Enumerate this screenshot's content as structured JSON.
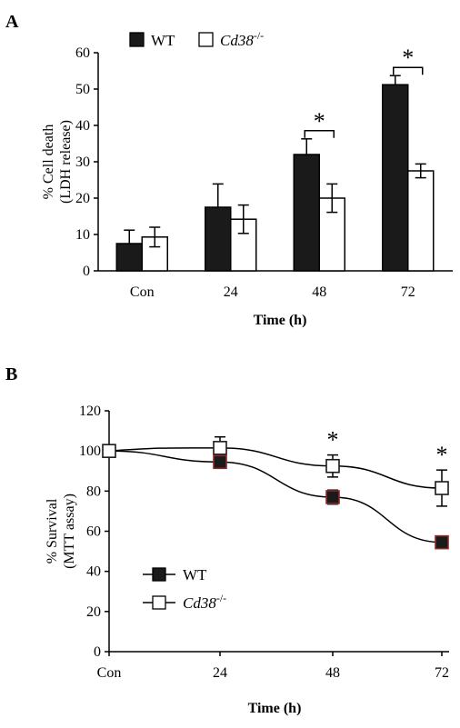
{
  "chart_data": [
    {
      "type": "bar",
      "panel": "A",
      "categories": [
        "Con",
        "24",
        "48",
        "72"
      ],
      "series": [
        {
          "name": "WT",
          "values": [
            7.5,
            17.5,
            32,
            51.2
          ],
          "errors": [
            3.7,
            6.4,
            4.3,
            2.5
          ],
          "color": "#1a1a1a"
        },
        {
          "name": "Cd38",
          "name_sup": "-/-",
          "values": [
            9.3,
            14.2,
            20,
            27.5
          ],
          "errors": [
            2.7,
            3.9,
            3.9,
            1.9
          ],
          "color": "#ffffff"
        }
      ],
      "ylabel_line1": "% Cell death",
      "ylabel_line2": "(LDH release)",
      "xlabel": "Time (h)",
      "ylim": [
        0,
        60
      ],
      "yticks": [
        "0",
        "10",
        "20",
        "30",
        "40",
        "50",
        "60"
      ],
      "significance": [
        {
          "category": "48",
          "label": "*"
        },
        {
          "category": "72",
          "label": "*"
        }
      ],
      "legend_position": "top"
    },
    {
      "type": "line",
      "panel": "B",
      "categories": [
        "Con",
        "24",
        "48",
        "72"
      ],
      "series": [
        {
          "name": "WT",
          "values": [
            100,
            94.5,
            77,
            54.5
          ],
          "errors": [
            0,
            3,
            3.5,
            2
          ],
          "color": "#1a1a1a",
          "edge": "#8b2a2a"
        },
        {
          "name": "Cd38",
          "name_sup": "-/-",
          "values": [
            100,
            101.5,
            92.5,
            81.5
          ],
          "errors": [
            0,
            5.5,
            5.5,
            9
          ],
          "color": "#ffffff",
          "edge": "#1a1a1a"
        }
      ],
      "ylabel_line1": "% Survival",
      "ylabel_line2": "(MTT assay)",
      "xlabel": "Time (h)",
      "ylim": [
        0,
        120
      ],
      "yticks": [
        "0",
        "20",
        "40",
        "60",
        "80",
        "100",
        "120"
      ],
      "significance": [
        {
          "category": "48",
          "label": "*"
        },
        {
          "category": "72",
          "label": "*"
        }
      ],
      "legend_position": "lower-left"
    }
  ]
}
